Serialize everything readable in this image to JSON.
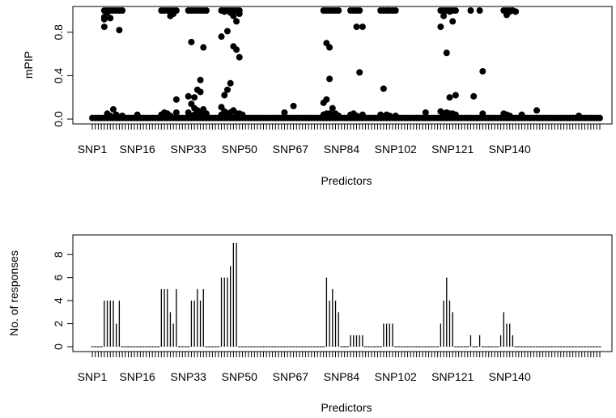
{
  "chart_data": [
    {
      "type": "scatter",
      "xlabel": "Predictors",
      "ylabel": "mPIP",
      "ylim": [
        0,
        1
      ],
      "yticks": [
        0.0,
        0.4,
        0.8
      ],
      "ytick_labels": [
        "0.0",
        "0.4",
        "0.8"
      ],
      "n_predictors": 170,
      "x_tick_labels": [
        {
          "label": "SNP1",
          "index": 1
        },
        {
          "label": "SNP16",
          "index": 16
        },
        {
          "label": "SNP33",
          "index": 33
        },
        {
          "label": "SNP50",
          "index": 50
        },
        {
          "label": "SNP67",
          "index": 67
        },
        {
          "label": "SNP84",
          "index": 84
        },
        {
          "label": "SNP102",
          "index": 102
        },
        {
          "label": "SNP121",
          "index": 121
        },
        {
          "label": "SNP140",
          "index": 140
        }
      ],
      "background_level": 0.01,
      "points": [
        {
          "x": 5,
          "y": [
            1.0,
            0.94,
            0.92,
            0.85
          ]
        },
        {
          "x": 6,
          "y": [
            1.0,
            0.98,
            0.05
          ]
        },
        {
          "x": 7,
          "y": [
            1.0,
            0.93,
            0.03
          ]
        },
        {
          "x": 8,
          "y": [
            1.0,
            0.09
          ]
        },
        {
          "x": 9,
          "y": [
            1.0,
            0.04
          ]
        },
        {
          "x": 10,
          "y": [
            1.0,
            0.82
          ]
        },
        {
          "x": 11,
          "y": [
            1.0,
            0.03
          ]
        },
        {
          "x": 16,
          "y": [
            0.04
          ]
        },
        {
          "x": 24,
          "y": [
            1.0,
            0.04
          ]
        },
        {
          "x": 25,
          "y": [
            1.0,
            0.06
          ]
        },
        {
          "x": 26,
          "y": [
            1.0,
            0.05
          ]
        },
        {
          "x": 27,
          "y": [
            1.0,
            0.95,
            0.03
          ]
        },
        {
          "x": 28,
          "y": [
            1.0,
            0.97
          ]
        },
        {
          "x": 29,
          "y": [
            1.0,
            0.18,
            0.06
          ]
        },
        {
          "x": 33,
          "y": [
            1.0,
            0.21,
            0.06
          ]
        },
        {
          "x": 34,
          "y": [
            1.0,
            0.71,
            0.14,
            0.03
          ]
        },
        {
          "x": 35,
          "y": [
            1.0,
            0.2,
            0.1,
            0.04
          ]
        },
        {
          "x": 36,
          "y": [
            1.0,
            0.27,
            0.08
          ]
        },
        {
          "x": 37,
          "y": [
            1.0,
            0.36,
            0.25,
            0.05
          ]
        },
        {
          "x": 38,
          "y": [
            1.0,
            0.66,
            0.09
          ]
        },
        {
          "x": 39,
          "y": [
            1.0,
            0.05
          ]
        },
        {
          "x": 44,
          "y": [
            1.0,
            0.76,
            0.11,
            0.04
          ]
        },
        {
          "x": 45,
          "y": [
            1.0,
            0.99,
            0.22,
            0.07
          ]
        },
        {
          "x": 46,
          "y": [
            1.0,
            0.81,
            0.27,
            0.05
          ]
        },
        {
          "x": 47,
          "y": [
            1.0,
            0.98,
            0.33,
            0.06
          ]
        },
        {
          "x": 48,
          "y": [
            1.0,
            0.95,
            0.67,
            0.08
          ]
        },
        {
          "x": 49,
          "y": [
            1.0,
            0.9,
            0.64,
            0.05
          ]
        },
        {
          "x": 50,
          "y": [
            1.0,
            0.97,
            0.57,
            0.05
          ]
        },
        {
          "x": 51,
          "y": [
            0.04
          ]
        },
        {
          "x": 65,
          "y": [
            0.06
          ]
        },
        {
          "x": 68,
          "y": [
            0.12
          ]
        },
        {
          "x": 78,
          "y": [
            1.0,
            0.15,
            0.04
          ]
        },
        {
          "x": 79,
          "y": [
            1.0,
            0.7,
            0.18,
            0.05
          ]
        },
        {
          "x": 80,
          "y": [
            1.0,
            0.66,
            0.37,
            0.05
          ]
        },
        {
          "x": 81,
          "y": [
            1.0,
            0.1,
            0.04
          ]
        },
        {
          "x": 82,
          "y": [
            1.0,
            0.05
          ]
        },
        {
          "x": 83,
          "y": [
            1.0,
            0.03
          ]
        },
        {
          "x": 87,
          "y": [
            1.0,
            0.04
          ]
        },
        {
          "x": 88,
          "y": [
            1.0,
            0.05
          ]
        },
        {
          "x": 89,
          "y": [
            1.0,
            0.85,
            0.03
          ]
        },
        {
          "x": 90,
          "y": [
            1.0,
            0.43
          ]
        },
        {
          "x": 91,
          "y": [
            0.85,
            0.04
          ]
        },
        {
          "x": 97,
          "y": [
            1.0,
            0.04
          ]
        },
        {
          "x": 98,
          "y": [
            1.0,
            0.28
          ]
        },
        {
          "x": 99,
          "y": [
            1.0,
            0.04
          ]
        },
        {
          "x": 100,
          "y": [
            1.0,
            0.03
          ]
        },
        {
          "x": 101,
          "y": [
            1.0
          ]
        },
        {
          "x": 102,
          "y": [
            1.0,
            0.03
          ]
        },
        {
          "x": 112,
          "y": [
            0.06
          ]
        },
        {
          "x": 117,
          "y": [
            1.0,
            0.85,
            0.07
          ]
        },
        {
          "x": 118,
          "y": [
            1.0,
            0.95,
            0.05
          ]
        },
        {
          "x": 119,
          "y": [
            1.0,
            0.61,
            0.06
          ]
        },
        {
          "x": 120,
          "y": [
            1.0,
            0.99,
            0.2,
            0.05
          ]
        },
        {
          "x": 121,
          "y": [
            1.0,
            0.9,
            0.05
          ]
        },
        {
          "x": 122,
          "y": [
            1.0,
            0.22,
            0.04
          ]
        },
        {
          "x": 127,
          "y": [
            1.0
          ]
        },
        {
          "x": 128,
          "y": [
            0.21
          ]
        },
        {
          "x": 130,
          "y": [
            1.0
          ]
        },
        {
          "x": 131,
          "y": [
            0.44,
            0.05
          ]
        },
        {
          "x": 138,
          "y": [
            1.0,
            0.05
          ]
        },
        {
          "x": 139,
          "y": [
            1.0,
            0.96,
            0.04
          ]
        },
        {
          "x": 140,
          "y": [
            1.0,
            0.99,
            0.03
          ]
        },
        {
          "x": 141,
          "y": [
            1.0
          ]
        },
        {
          "x": 142,
          "y": [
            0.99
          ]
        },
        {
          "x": 144,
          "y": [
            0.04
          ]
        },
        {
          "x": 149,
          "y": [
            0.08
          ]
        },
        {
          "x": 163,
          "y": [
            0.03
          ]
        }
      ]
    },
    {
      "type": "bar",
      "xlabel": "Predictors",
      "ylabel": "No. of responses",
      "ylim": [
        0,
        9
      ],
      "yticks": [
        0,
        2,
        4,
        6,
        8
      ],
      "ytick_labels": [
        "0",
        "2",
        "4",
        "6",
        "8"
      ],
      "n_predictors": 170,
      "x_tick_labels": [
        {
          "label": "SNP1",
          "index": 1
        },
        {
          "label": "SNP16",
          "index": 16
        },
        {
          "label": "SNP33",
          "index": 33
        },
        {
          "label": "SNP50",
          "index": 50
        },
        {
          "label": "SNP67",
          "index": 67
        },
        {
          "label": "SNP84",
          "index": 84
        },
        {
          "label": "SNP102",
          "index": 102
        },
        {
          "label": "SNP121",
          "index": 121
        },
        {
          "label": "SNP140",
          "index": 140
        }
      ],
      "values_nonzero": [
        {
          "x": 5,
          "value": 4
        },
        {
          "x": 6,
          "value": 4
        },
        {
          "x": 7,
          "value": 4
        },
        {
          "x": 8,
          "value": 4
        },
        {
          "x": 9,
          "value": 2
        },
        {
          "x": 10,
          "value": 4
        },
        {
          "x": 24,
          "value": 5
        },
        {
          "x": 25,
          "value": 5
        },
        {
          "x": 26,
          "value": 5
        },
        {
          "x": 27,
          "value": 3
        },
        {
          "x": 28,
          "value": 2
        },
        {
          "x": 29,
          "value": 5
        },
        {
          "x": 34,
          "value": 4
        },
        {
          "x": 35,
          "value": 4
        },
        {
          "x": 36,
          "value": 5
        },
        {
          "x": 37,
          "value": 4
        },
        {
          "x": 38,
          "value": 5
        },
        {
          "x": 44,
          "value": 6
        },
        {
          "x": 45,
          "value": 6
        },
        {
          "x": 46,
          "value": 6
        },
        {
          "x": 47,
          "value": 7
        },
        {
          "x": 48,
          "value": 9
        },
        {
          "x": 49,
          "value": 9
        },
        {
          "x": 79,
          "value": 6
        },
        {
          "x": 80,
          "value": 4
        },
        {
          "x": 81,
          "value": 5
        },
        {
          "x": 82,
          "value": 4
        },
        {
          "x": 83,
          "value": 3
        },
        {
          "x": 87,
          "value": 1
        },
        {
          "x": 88,
          "value": 1
        },
        {
          "x": 89,
          "value": 1
        },
        {
          "x": 90,
          "value": 1
        },
        {
          "x": 91,
          "value": 1
        },
        {
          "x": 98,
          "value": 2
        },
        {
          "x": 99,
          "value": 2
        },
        {
          "x": 100,
          "value": 2
        },
        {
          "x": 101,
          "value": 2
        },
        {
          "x": 117,
          "value": 2
        },
        {
          "x": 118,
          "value": 4
        },
        {
          "x": 119,
          "value": 6
        },
        {
          "x": 120,
          "value": 4
        },
        {
          "x": 121,
          "value": 3
        },
        {
          "x": 127,
          "value": 1
        },
        {
          "x": 130,
          "value": 1
        },
        {
          "x": 137,
          "value": 1
        },
        {
          "x": 138,
          "value": 3
        },
        {
          "x": 139,
          "value": 2
        },
        {
          "x": 140,
          "value": 2
        },
        {
          "x": 141,
          "value": 1
        }
      ]
    }
  ]
}
